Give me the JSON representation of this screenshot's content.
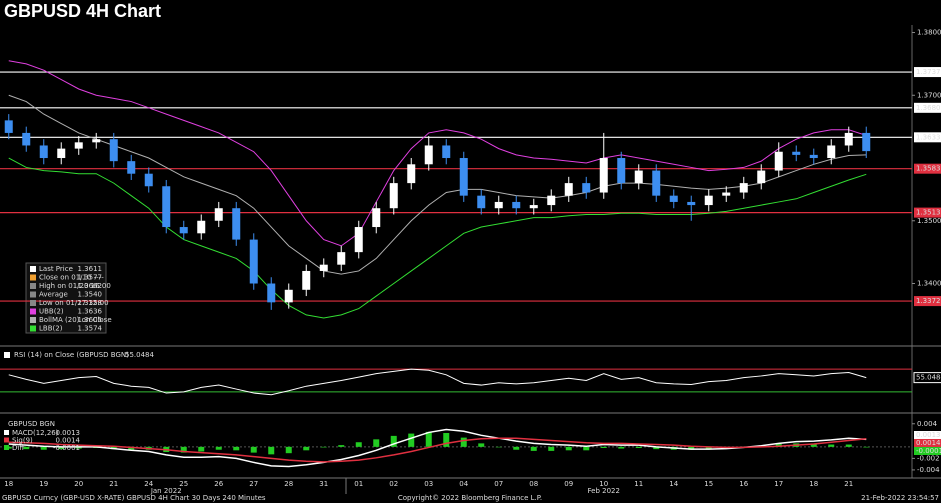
{
  "chart_data": [
    {
      "type": "candlestick",
      "title": "GBPUSD 4H Chart",
      "categories": [
        "18",
        null,
        "19",
        null,
        "20",
        null,
        "21",
        null,
        "24",
        null,
        "25",
        null,
        "26",
        null,
        "27",
        null,
        "28",
        null,
        "31",
        null,
        "01",
        null,
        "02",
        null,
        "03",
        null,
        "04",
        null,
        "07",
        null,
        "08",
        null,
        "09",
        null,
        "10",
        null,
        "11",
        null,
        "14",
        null,
        "15",
        null,
        "16",
        null,
        "17",
        null,
        "18",
        null,
        "21",
        null
      ],
      "month_labels": [
        "Jan 2022",
        "Feb 2022"
      ],
      "open": [
        1.366,
        1.364,
        1.362,
        1.36,
        1.3615,
        1.3625,
        1.363,
        1.3595,
        1.3575,
        1.3555,
        1.349,
        1.348,
        1.35,
        1.352,
        1.347,
        1.34,
        1.337,
        1.339,
        1.342,
        1.343,
        1.345,
        1.349,
        1.352,
        1.356,
        1.359,
        1.362,
        1.36,
        1.354,
        1.352,
        1.353,
        1.352,
        1.3525,
        1.354,
        1.356,
        1.3545,
        1.36,
        1.356,
        1.358,
        1.354,
        1.353,
        1.3525,
        1.354,
        1.3545,
        1.356,
        1.358,
        1.361,
        1.3605,
        1.36,
        1.362,
        1.364
      ],
      "high": [
        1.367,
        1.365,
        1.363,
        1.3625,
        1.3635,
        1.364,
        1.364,
        1.3605,
        1.3585,
        1.3565,
        1.35,
        1.351,
        1.353,
        1.353,
        1.348,
        1.341,
        1.34,
        1.343,
        1.344,
        1.346,
        1.35,
        1.353,
        1.357,
        1.36,
        1.3635,
        1.363,
        1.361,
        1.355,
        1.354,
        1.354,
        1.3535,
        1.355,
        1.357,
        1.357,
        1.364,
        1.361,
        1.359,
        1.359,
        1.355,
        1.354,
        1.355,
        1.3555,
        1.357,
        1.359,
        1.3625,
        1.362,
        1.3615,
        1.363,
        1.365,
        1.365
      ],
      "low": [
        1.363,
        1.361,
        1.359,
        1.359,
        1.3605,
        1.3615,
        1.3585,
        1.3565,
        1.3545,
        1.348,
        1.347,
        1.347,
        1.349,
        1.346,
        1.339,
        1.3358,
        1.336,
        1.338,
        1.341,
        1.342,
        1.344,
        1.348,
        1.351,
        1.355,
        1.358,
        1.359,
        1.353,
        1.351,
        1.351,
        1.351,
        1.351,
        1.3515,
        1.353,
        1.3535,
        1.3535,
        1.355,
        1.355,
        1.353,
        1.352,
        1.35,
        1.3515,
        1.353,
        1.3535,
        1.355,
        1.357,
        1.3595,
        1.359,
        1.359,
        1.361,
        1.36
      ],
      "close": [
        1.364,
        1.362,
        1.36,
        1.3615,
        1.3625,
        1.363,
        1.3595,
        1.3575,
        1.3555,
        1.349,
        1.348,
        1.35,
        1.352,
        1.347,
        1.34,
        1.337,
        1.339,
        1.342,
        1.343,
        1.345,
        1.349,
        1.352,
        1.356,
        1.359,
        1.362,
        1.36,
        1.354,
        1.352,
        1.353,
        1.352,
        1.3525,
        1.354,
        1.356,
        1.3545,
        1.36,
        1.356,
        1.358,
        1.354,
        1.353,
        1.3525,
        1.354,
        1.3545,
        1.356,
        1.358,
        1.361,
        1.3605,
        1.36,
        1.362,
        1.364,
        1.3611
      ],
      "up_color": "#ffffff",
      "down_color": "#3d8ef0",
      "overlays": [
        {
          "name": "UBB(2)",
          "color": "#e040e0",
          "values": [
            1.3755,
            1.375,
            1.374,
            1.3725,
            1.371,
            1.37,
            1.3695,
            1.369,
            1.368,
            1.367,
            1.366,
            1.365,
            1.364,
            1.3625,
            1.361,
            1.358,
            1.354,
            1.35,
            1.347,
            1.346,
            1.348,
            1.353,
            1.358,
            1.3615,
            1.364,
            1.3645,
            1.364,
            1.363,
            1.3615,
            1.3605,
            1.36,
            1.3598,
            1.3595,
            1.3592,
            1.36,
            1.3605,
            1.36,
            1.3595,
            1.359,
            1.3585,
            1.358,
            1.3582,
            1.3585,
            1.3595,
            1.3615,
            1.363,
            1.364,
            1.3645,
            1.3645,
            1.3636
          ]
        },
        {
          "name": "BollMA (20) on Close",
          "color": "#b0b0b0",
          "values": [
            1.37,
            1.369,
            1.367,
            1.3655,
            1.364,
            1.363,
            1.362,
            1.361,
            1.36,
            1.3585,
            1.357,
            1.356,
            1.355,
            1.354,
            1.352,
            1.349,
            1.346,
            1.344,
            1.342,
            1.3415,
            1.342,
            1.344,
            1.347,
            1.35,
            1.3525,
            1.3545,
            1.355,
            1.355,
            1.3545,
            1.354,
            1.3538,
            1.3536,
            1.354,
            1.3545,
            1.3555,
            1.356,
            1.356,
            1.3558,
            1.3555,
            1.3552,
            1.355,
            1.3552,
            1.3555,
            1.356,
            1.357,
            1.358,
            1.359,
            1.3598,
            1.3604,
            1.3605
          ]
        },
        {
          "name": "LBB(2)",
          "color": "#33dd33",
          "values": [
            1.36,
            1.3585,
            1.358,
            1.3578,
            1.3575,
            1.3575,
            1.356,
            1.354,
            1.352,
            1.349,
            1.347,
            1.346,
            1.345,
            1.344,
            1.342,
            1.339,
            1.3365,
            1.335,
            1.3345,
            1.335,
            1.336,
            1.338,
            1.34,
            1.342,
            1.344,
            1.346,
            1.348,
            1.349,
            1.3495,
            1.35,
            1.3505,
            1.3505,
            1.3508,
            1.351,
            1.351,
            1.3512,
            1.3512,
            1.351,
            1.351,
            1.351,
            1.3512,
            1.3515,
            1.352,
            1.3525,
            1.353,
            1.3535,
            1.3545,
            1.3555,
            1.3565,
            1.3574
          ]
        }
      ],
      "levels": [
        {
          "value": 1.3737,
          "label": "1.3737",
          "color": "#ffffff"
        },
        {
          "value": 1.368,
          "label": "1.3680",
          "color": "#ffffff"
        },
        {
          "value": 1.3633,
          "label": "1.3633",
          "color": "#ffffff"
        },
        {
          "value": 1.3583,
          "label": "1.3583",
          "color": "#e03040"
        },
        {
          "value": 1.3513,
          "label": "1.3513",
          "color": "#e03040"
        },
        {
          "value": 1.3372,
          "label": "1.3372",
          "color": "#e03040"
        }
      ],
      "legend": [
        {
          "label": "Last Price",
          "value": "1.3611",
          "color": "#ffffff"
        },
        {
          "label": "Close on 01/10 ----",
          "value": "1.3577",
          "color": "#f0a030"
        },
        {
          "label": "High on 01/20 16:00",
          "value": "1.3662",
          "color": "#888888"
        },
        {
          "label": "Average",
          "value": "1.3540",
          "color": "#888888"
        },
        {
          "label": "Low on 01/27 12:00",
          "value": "1.3358",
          "color": "#888888"
        },
        {
          "label": "UBB(2)",
          "value": "1.3636",
          "color": "#e040e0"
        },
        {
          "label": "BollMA (20)  on Close",
          "value": "1.3605",
          "color": "#b0b0b0"
        },
        {
          "label": "LBB(2)",
          "value": "1.3574",
          "color": "#33dd33"
        }
      ],
      "ylim": [
        1.3302,
        1.3812
      ],
      "yticks": [
        {
          "value": 1.38,
          "label": "1.3800"
        },
        {
          "value": 1.37,
          "label": "1.3700"
        },
        {
          "value": 1.35,
          "label": "1.3500"
        },
        {
          "value": 1.34,
          "label": "1.3400"
        }
      ]
    },
    {
      "type": "line",
      "title": "RSI (14)  on Close (GBPUSD BGN)",
      "current_label": "55.0484",
      "series": [
        {
          "color": "#ffffff",
          "values": [
            60,
            52,
            45,
            50,
            55,
            57,
            45,
            40,
            38,
            28,
            30,
            38,
            42,
            35,
            28,
            25,
            32,
            40,
            45,
            50,
            56,
            62,
            66,
            70,
            68,
            60,
            45,
            42,
            46,
            44,
            46,
            50,
            54,
            50,
            62,
            52,
            55,
            46,
            44,
            43,
            48,
            50,
            55,
            58,
            62,
            60,
            58,
            62,
            64,
            55.0484
          ]
        }
      ],
      "levels": [
        {
          "value": 70,
          "color": "#e03040"
        },
        {
          "value": 30,
          "color": "#33bb33"
        }
      ],
      "ylim": [
        0,
        100
      ]
    },
    {
      "type": "macd",
      "title": "GBPUSD BGN",
      "legend": [
        {
          "label": "MACD(12,26)",
          "value": "0.0013",
          "color": "#ffffff"
        },
        {
          "label": "Sig(9)",
          "value": "0.0014",
          "color": "#e03040"
        },
        {
          "label": "Diff",
          "value": "-0.0001",
          "color": "#22cc22"
        }
      ],
      "macd": [
        0.0005,
        0.0003,
        0.0001,
        0,
        0,
        0,
        -0.0003,
        -0.0006,
        -0.0008,
        -0.0014,
        -0.0018,
        -0.0018,
        -0.0017,
        -0.002,
        -0.0027,
        -0.0033,
        -0.0034,
        -0.0031,
        -0.0027,
        -0.0022,
        -0.0015,
        -0.0006,
        0.0005,
        0.0015,
        0.0025,
        0.003,
        0.0027,
        0.002,
        0.0015,
        0.001,
        0.0006,
        0.0004,
        0.0003,
        0.0001,
        0.0004,
        0.0003,
        0.0003,
        0,
        -0.0002,
        -0.0004,
        -0.0004,
        -0.0003,
        -0.0001,
        0.0002,
        0.0006,
        0.0009,
        0.001,
        0.0012,
        0.0015,
        0.0013
      ],
      "signal": [
        0.0008,
        0.0007,
        0.0006,
        0.0004,
        0.0003,
        0.0002,
        0.0001,
        -0.0001,
        -0.0003,
        -0.0005,
        -0.0008,
        -0.001,
        -0.0012,
        -0.0014,
        -0.0017,
        -0.002,
        -0.0023,
        -0.0025,
        -0.0026,
        -0.0025,
        -0.0023,
        -0.0019,
        -0.0014,
        -0.0008,
        -0.0001,
        0.0006,
        0.0011,
        0.0014,
        0.0015,
        0.0015,
        0.0013,
        0.0011,
        0.0009,
        0.0007,
        0.0006,
        0.0006,
        0.0005,
        0.0004,
        0.0003,
        0.0001,
        0,
        -0.0001,
        -0.0001,
        0,
        0.0001,
        0.0003,
        0.0005,
        0.0008,
        0.0011,
        0.0014
      ],
      "diff": [
        -0.0003,
        -0.0004,
        -0.0005,
        -0.0004,
        -0.0003,
        -0.0002,
        -0.0004,
        -0.0005,
        -0.0005,
        -0.0009,
        -0.001,
        -0.0008,
        -0.0005,
        -0.0006,
        -0.001,
        -0.0013,
        -0.0011,
        -0.0006,
        -0.0001,
        0.0003,
        0.0008,
        0.0013,
        0.0019,
        0.0023,
        0.0026,
        0.0024,
        0.0016,
        0.0006,
        0,
        -0.0005,
        -0.0007,
        -0.0007,
        -0.0006,
        -0.0006,
        -0.0002,
        -0.0003,
        -0.0002,
        -0.0004,
        -0.0005,
        -0.0005,
        -0.0004,
        -0.0002,
        0,
        0.0002,
        0.0005,
        0.0006,
        0.0005,
        0.0004,
        0.0004,
        -0.0001
      ],
      "ylim": [
        -0.0054,
        0.005
      ],
      "yticks": [
        0.004,
        -0.002,
        -0.004
      ]
    }
  ],
  "footer": {
    "left": "GBPUSD Curncy (GBP-USD X-RATE) GBPUSD 4H Chart 30 Days 240 Minutes",
    "center": "Copyright© 2022 Bloomberg Finance L.P.",
    "right": "21-Feb-2022 23:54:57"
  }
}
